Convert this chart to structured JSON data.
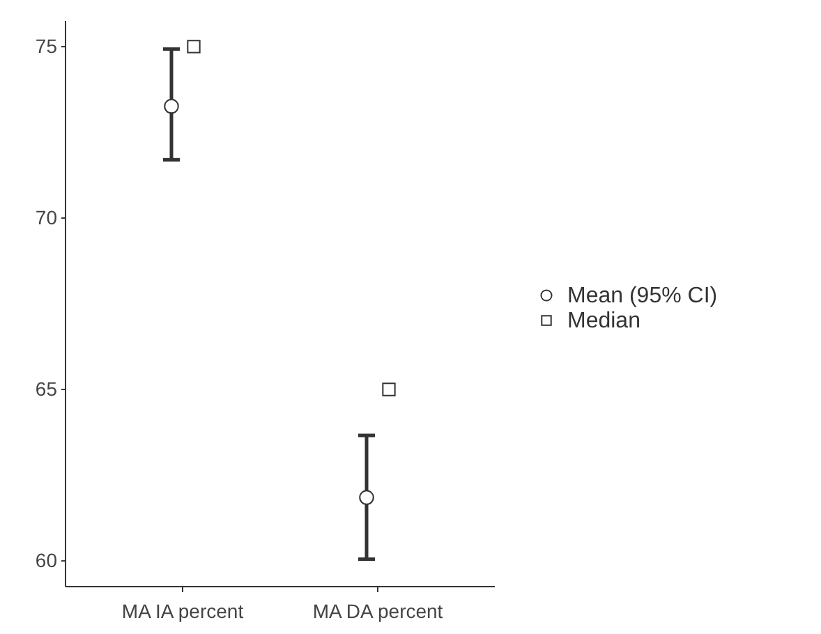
{
  "chart_data": {
    "type": "scatter",
    "categories": [
      "MA IA percent",
      "MA DA percent"
    ],
    "ylim": [
      59.25,
      75.75
    ],
    "yticks": [
      60,
      65,
      70,
      75
    ],
    "grid": false,
    "legend": "right",
    "series": [
      {
        "name": "Mean (95% CI)",
        "color": "#ffffff",
        "marker": "circle",
        "values": [
          73.26,
          61.85
        ],
        "errors": [
          [
            71.7,
            74.93
          ],
          [
            60.05,
            63.66
          ]
        ]
      },
      {
        "name": "Median",
        "color": "#ffffff",
        "marker": "square",
        "values": [
          75.0,
          65.0
        ]
      }
    ]
  }
}
